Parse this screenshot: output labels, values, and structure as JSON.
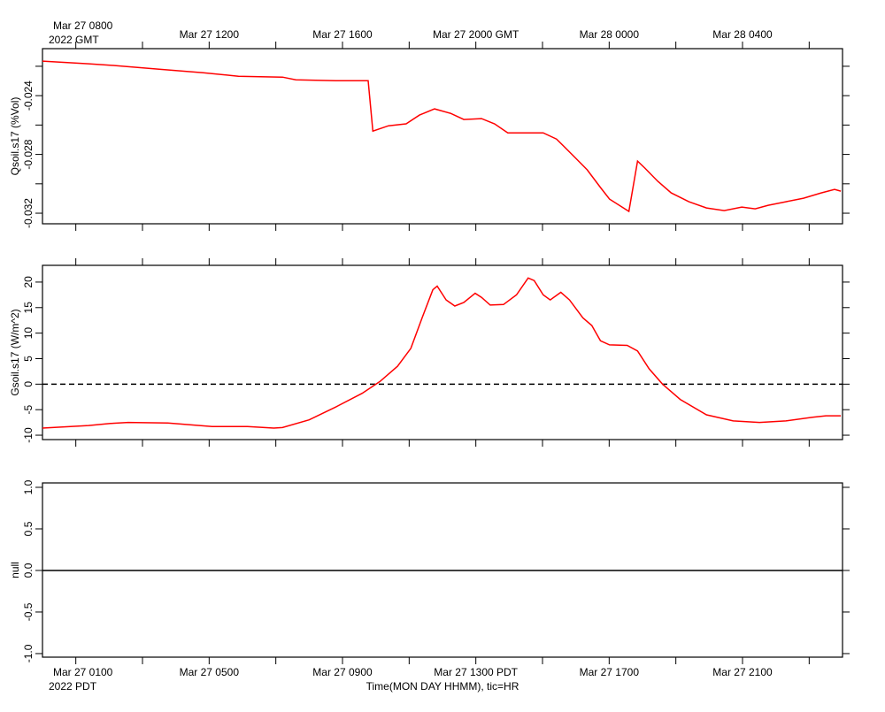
{
  "time_axis": {
    "xlim": [
      0,
      24
    ],
    "top_ticks": [
      {
        "value": 1,
        "label": "Mar 27 0800"
      },
      {
        "value": 5,
        "label": "Mar 27 1200"
      },
      {
        "value": 9,
        "label": "Mar 27 1600"
      },
      {
        "value": 13,
        "label": "Mar 27 2000 GMT"
      },
      {
        "value": 17,
        "label": "Mar 28 0000"
      },
      {
        "value": 21,
        "label": "Mar 28 0400"
      }
    ],
    "top_note": "2022 GMT",
    "bottom_ticks": [
      {
        "value": 1,
        "label": "Mar 27 0100"
      },
      {
        "value": 5,
        "label": "Mar 27 0500"
      },
      {
        "value": 9,
        "label": "Mar 27 0900"
      },
      {
        "value": 13,
        "label": "Mar 27 1300 PDT"
      },
      {
        "value": 17,
        "label": "Mar 27 1700"
      },
      {
        "value": 21,
        "label": "Mar 27 2100"
      }
    ],
    "bottom_note": "2022 PDT",
    "minor_ticks": [
      3,
      7,
      11,
      15,
      19,
      23
    ],
    "xlabel": "Time(MON DAY HHMM), tic=HR"
  },
  "chart_data": [
    {
      "type": "line",
      "ylabel": "Qsoil.s17 (%Vol)",
      "ylim": [
        -0.03272,
        -0.0208
      ],
      "yticks": [
        -0.024,
        -0.028,
        -0.032
      ],
      "yminor_ticks": [
        -0.022,
        -0.026,
        -0.03
      ],
      "series": [
        {
          "color": "#ff0000",
          "x": [
            0,
            1.38,
            2.17,
            3.5,
            4.82,
            5.88,
            7.2,
            7.6,
            8.79,
            9.77,
            9.91,
            10.38,
            10.91,
            11.31,
            11.76,
            12.24,
            12.64,
            13.17,
            13.56,
            13.96,
            14.49,
            15.02,
            15.42,
            15.95,
            16.34,
            16.74,
            17.01,
            17.59,
            17.85,
            18.07,
            18.46,
            18.86,
            19.39,
            19.92,
            20.45,
            20.98,
            21.38,
            21.77,
            22.3,
            22.83,
            23.36,
            23.76,
            23.95
          ],
          "values": [
            -0.02165,
            -0.02183,
            -0.02195,
            -0.0222,
            -0.02244,
            -0.02268,
            -0.02274,
            -0.02292,
            -0.02298,
            -0.02298,
            -0.02641,
            -0.02605,
            -0.02592,
            -0.02532,
            -0.0249,
            -0.0252,
            -0.02562,
            -0.02556,
            -0.02592,
            -0.02653,
            -0.02653,
            -0.02653,
            -0.02695,
            -0.02815,
            -0.02905,
            -0.03025,
            -0.03104,
            -0.03188,
            -0.02845,
            -0.02893,
            -0.02983,
            -0.03062,
            -0.03122,
            -0.03164,
            -0.03182,
            -0.03158,
            -0.0317,
            -0.03146,
            -0.03122,
            -0.03098,
            -0.03062,
            -0.03038,
            -0.0305
          ]
        }
      ]
    },
    {
      "type": "line",
      "ylabel": "Gsoil.s17 (W/m^2)",
      "ylim": [
        -10.86,
        23.28
      ],
      "yticks": [
        20,
        15,
        10,
        5,
        0,
        -5,
        -10
      ],
      "reference_line": 0,
      "series": [
        {
          "color": "#ff0000",
          "x": [
            0,
            1.38,
            2.04,
            2.57,
            3.76,
            5.09,
            6.15,
            6.94,
            7.2,
            8,
            8.79,
            9.59,
            10.12,
            10.65,
            11.05,
            11.39,
            11.71,
            11.84,
            12.11,
            12.37,
            12.64,
            12.98,
            13.17,
            13.43,
            13.83,
            14.22,
            14.57,
            14.75,
            15.02,
            15.23,
            15.55,
            15.81,
            16.21,
            16.48,
            16.74,
            17.01,
            17.54,
            17.85,
            18.2,
            18.6,
            19.13,
            19.92,
            20.72,
            21.51,
            22.3,
            23.1,
            23.5,
            23.95
          ],
          "values": [
            -8.6,
            -8.1,
            -7.7,
            -7.5,
            -7.6,
            -8.3,
            -8.3,
            -8.6,
            -8.5,
            -7,
            -4.5,
            -1.8,
            0.5,
            3.5,
            7,
            13,
            18.5,
            19.2,
            16.5,
            15.3,
            16,
            17.8,
            17,
            15.5,
            15.6,
            17.5,
            20.8,
            20.3,
            17.5,
            16.5,
            18,
            16.5,
            13,
            11.5,
            8.5,
            7.7,
            7.6,
            6.5,
            3,
            0,
            -3,
            -6,
            -7.2,
            -7.5,
            -7.2,
            -6.5,
            -6.2,
            -6.2
          ]
        }
      ]
    },
    {
      "type": "line",
      "ylabel": "null",
      "ylim": [
        -1.043,
        1.053
      ],
      "yticks": [
        {
          "value": 1,
          "label": "1.0"
        },
        {
          "value": 0.5,
          "label": "0.5"
        },
        {
          "value": 0,
          "label": "0.0"
        },
        {
          "value": -0.5,
          "label": "-0.5"
        },
        {
          "value": -1,
          "label": "-1.0"
        }
      ],
      "series": [
        {
          "color": "#000000",
          "x": [
            0,
            24
          ],
          "values": [
            0,
            0
          ]
        }
      ]
    }
  ]
}
